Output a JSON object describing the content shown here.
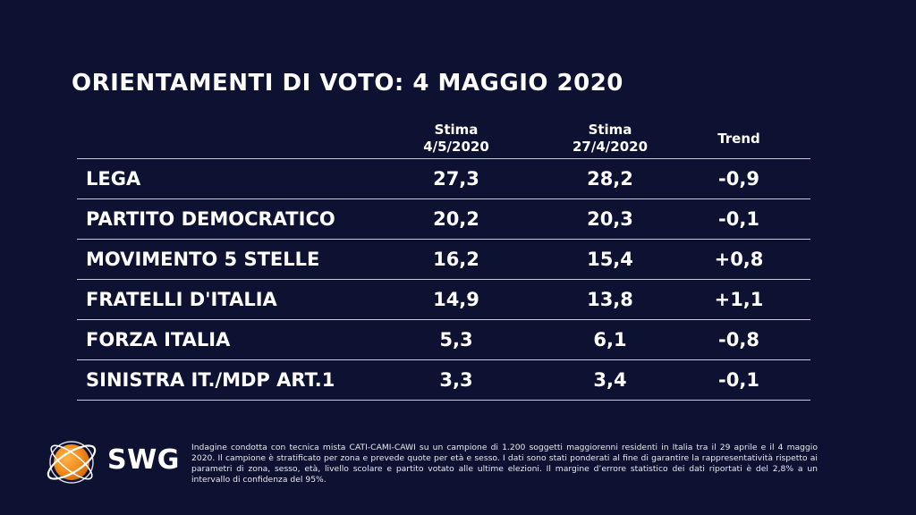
{
  "title": "ORIENTAMENTI DI VOTO: 4 MAGGIO 2020",
  "columns": {
    "current": {
      "line1": "Stima",
      "line2": "4/5/2020"
    },
    "previous": {
      "line1": "Stima",
      "line2": "27/4/2020"
    },
    "trend": "Trend"
  },
  "rows": [
    {
      "party": "LEGA",
      "current": "27,3",
      "previous": "28,2",
      "trend": "-0,9"
    },
    {
      "party": "PARTITO DEMOCRATICO",
      "current": "20,2",
      "previous": "20,3",
      "trend": "-0,1"
    },
    {
      "party": "MOVIMENTO 5 STELLE",
      "current": "16,2",
      "previous": "15,4",
      "trend": "+0,8"
    },
    {
      "party": "FRATELLI D'ITALIA",
      "current": "14,9",
      "previous": "13,8",
      "trend": "+1,1"
    },
    {
      "party": "FORZA ITALIA",
      "current": "5,3",
      "previous": "6,1",
      "trend": "-0,8"
    },
    {
      "party": "SINISTRA IT./MDP ART.1",
      "current": "3,3",
      "previous": "3,4",
      "trend": "-0,1"
    }
  ],
  "chart_data": {
    "type": "table",
    "title": "ORIENTAMENTI DI VOTO: 4 MAGGIO 2020",
    "columns": [
      "Stima 4/5/2020",
      "Stima 27/4/2020",
      "Trend"
    ],
    "categories": [
      "LEGA",
      "PARTITO DEMOCRATICO",
      "MOVIMENTO 5 STELLE",
      "FRATELLI D'ITALIA",
      "FORZA ITALIA",
      "SINISTRA IT./MDP ART.1"
    ],
    "series": [
      {
        "name": "Stima 4/5/2020",
        "values": [
          27.3,
          20.2,
          16.2,
          14.9,
          5.3,
          3.3
        ]
      },
      {
        "name": "Stima 27/4/2020",
        "values": [
          28.2,
          20.3,
          15.4,
          13.8,
          6.1,
          3.4
        ]
      },
      {
        "name": "Trend",
        "values": [
          -0.9,
          -0.1,
          0.8,
          1.1,
          -0.8,
          -0.1
        ]
      }
    ]
  },
  "logo": {
    "text": "SWG",
    "colors": {
      "orange": "#f28c1e",
      "ring": "#ffffff"
    }
  },
  "footnote": "Indagine condotta con tecnica mista CATI-CAMI-CAWI su un campione di 1.200 soggetti maggiorenni residenti in Italia tra il 29 aprile e il 4 maggio 2020. Il campione è stratificato per zona e prevede quote per età e sesso. I dati sono stati ponderati al fine di garantire la rappresentatività rispetto ai parametri di zona, sesso, età, livello scolare e partito votato alle ultime elezioni. Il margine d’errore statistico dei dati riportati è del 2,8% a un intervallo di confidenza del 95%.",
  "colors": {
    "background": "#0d1232",
    "text": "#ffffff",
    "rule": "#c8cbd6"
  }
}
